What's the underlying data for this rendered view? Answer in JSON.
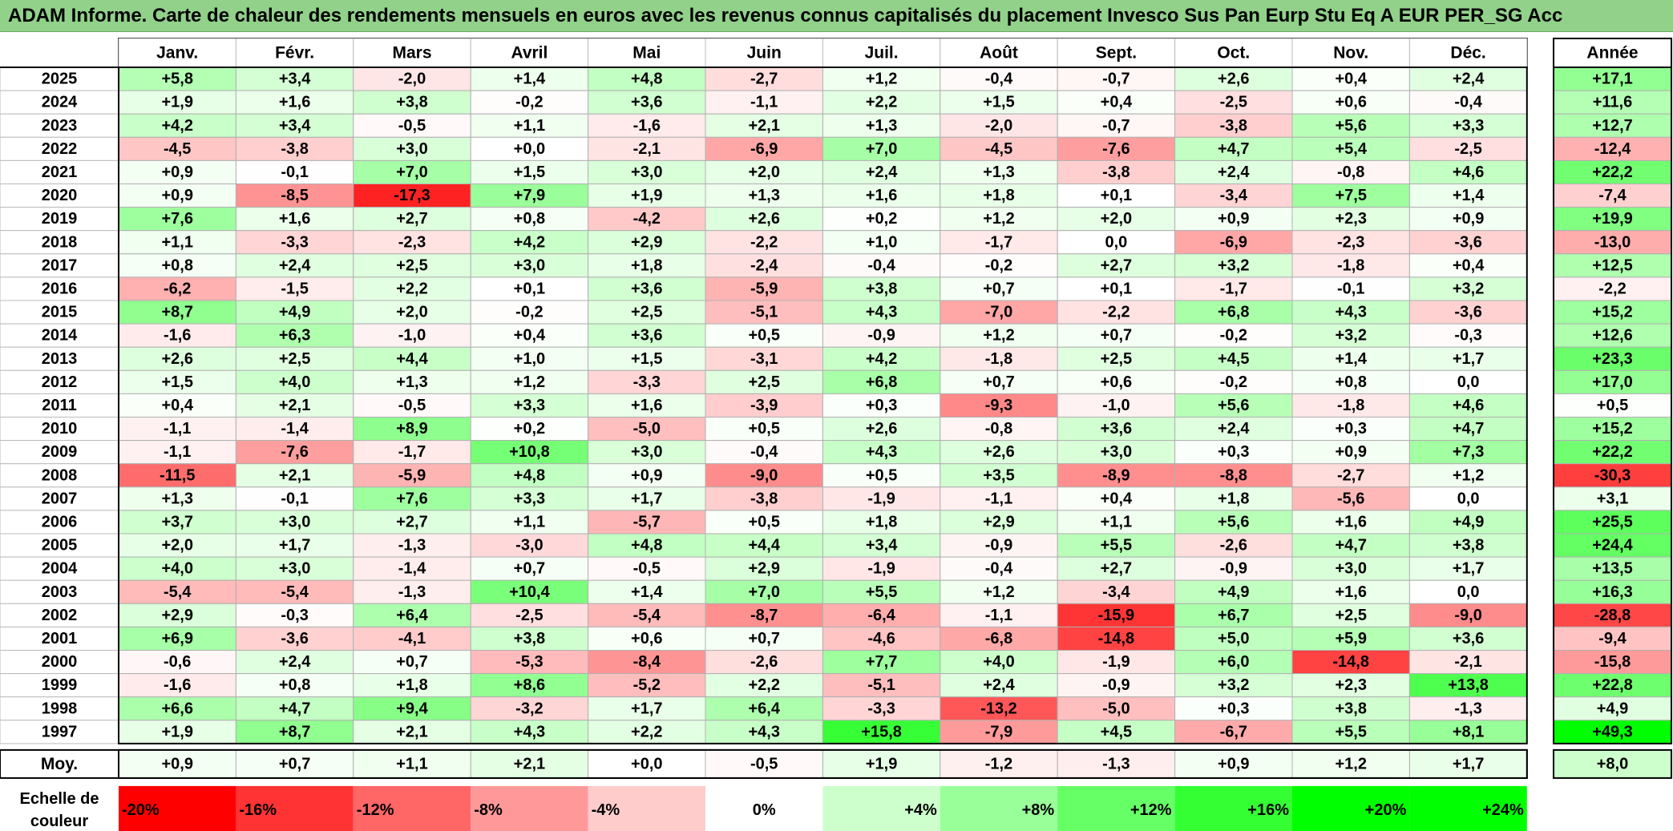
{
  "title": "ADAM Informe. Carte de chaleur des rendements mensuels en euros avec les revenus connus capitalisés du placement Invesco Sus Pan Eurp Stu Eq A EUR PER_SG Acc",
  "chart_data": {
    "type": "heatmap",
    "columns": [
      "Janv.",
      "Févr.",
      "Mars",
      "Avril",
      "Mai",
      "Juin",
      "Juil.",
      "Août",
      "Sept.",
      "Oct.",
      "Nov.",
      "Déc."
    ],
    "year_column_label": "Année",
    "rows": [
      {
        "year": "2025",
        "values": [
          "+5,8",
          "+3,4",
          "-2,0",
          "+1,4",
          "+4,8",
          "-2,7",
          "+1,2",
          "-0,4",
          "-0,7",
          "+2,6",
          "+0,4",
          "+2,4"
        ],
        "annual": "+17,1"
      },
      {
        "year": "2024",
        "values": [
          "+1,9",
          "+1,6",
          "+3,8",
          "-0,2",
          "+3,6",
          "-1,1",
          "+2,2",
          "+1,5",
          "+0,4",
          "-2,5",
          "+0,6",
          "-0,4"
        ],
        "annual": "+11,6"
      },
      {
        "year": "2023",
        "values": [
          "+4,2",
          "+3,4",
          "-0,5",
          "+1,1",
          "-1,6",
          "+2,1",
          "+1,3",
          "-2,0",
          "-0,7",
          "-3,8",
          "+5,6",
          "+3,3"
        ],
        "annual": "+12,7"
      },
      {
        "year": "2022",
        "values": [
          "-4,5",
          "-3,8",
          "+3,0",
          "+0,0",
          "-2,1",
          "-6,9",
          "+7,0",
          "-4,5",
          "-7,6",
          "+4,7",
          "+5,4",
          "-2,5"
        ],
        "annual": "-12,4"
      },
      {
        "year": "2021",
        "values": [
          "+0,9",
          "-0,1",
          "+7,0",
          "+1,5",
          "+3,0",
          "+2,0",
          "+2,4",
          "+1,3",
          "-3,8",
          "+2,4",
          "-0,8",
          "+4,6"
        ],
        "annual": "+22,2"
      },
      {
        "year": "2020",
        "values": [
          "+0,9",
          "-8,5",
          "-17,3",
          "+7,9",
          "+1,9",
          "+1,3",
          "+1,6",
          "+1,8",
          "+0,1",
          "-3,4",
          "+7,5",
          "+1,4"
        ],
        "annual": "-7,4"
      },
      {
        "year": "2019",
        "values": [
          "+7,6",
          "+1,6",
          "+2,7",
          "+0,8",
          "-4,2",
          "+2,6",
          "+0,2",
          "+1,2",
          "+2,0",
          "+0,9",
          "+2,3",
          "+0,9"
        ],
        "annual": "+19,9"
      },
      {
        "year": "2018",
        "values": [
          "+1,1",
          "-3,3",
          "-2,3",
          "+4,2",
          "+2,9",
          "-2,2",
          "+1,0",
          "-1,7",
          "0,0",
          "-6,9",
          "-2,3",
          "-3,6"
        ],
        "annual": "-13,0"
      },
      {
        "year": "2017",
        "values": [
          "+0,8",
          "+2,4",
          "+2,5",
          "+3,0",
          "+1,8",
          "-2,4",
          "-0,4",
          "-0,2",
          "+2,7",
          "+3,2",
          "-1,8",
          "+0,4"
        ],
        "annual": "+12,5"
      },
      {
        "year": "2016",
        "values": [
          "-6,2",
          "-1,5",
          "+2,2",
          "+0,1",
          "+3,6",
          "-5,9",
          "+3,8",
          "+0,7",
          "+0,1",
          "-1,7",
          "-0,1",
          "+3,2"
        ],
        "annual": "-2,2"
      },
      {
        "year": "2015",
        "values": [
          "+8,7",
          "+4,9",
          "+2,0",
          "-0,2",
          "+2,5",
          "-5,1",
          "+4,3",
          "-7,0",
          "-2,2",
          "+6,8",
          "+4,3",
          "-3,6"
        ],
        "annual": "+15,2"
      },
      {
        "year": "2014",
        "values": [
          "-1,6",
          "+6,3",
          "-1,0",
          "+0,4",
          "+3,6",
          "+0,5",
          "-0,9",
          "+1,2",
          "+0,7",
          "-0,2",
          "+3,2",
          "-0,3"
        ],
        "annual": "+12,6"
      },
      {
        "year": "2013",
        "values": [
          "+2,6",
          "+2,5",
          "+4,4",
          "+1,0",
          "+1,5",
          "-3,1",
          "+4,2",
          "-1,8",
          "+2,5",
          "+4,5",
          "+1,4",
          "+1,7"
        ],
        "annual": "+23,3"
      },
      {
        "year": "2012",
        "values": [
          "+1,5",
          "+4,0",
          "+1,3",
          "+1,2",
          "-3,3",
          "+2,5",
          "+6,8",
          "+0,7",
          "+0,6",
          "-0,2",
          "+0,8",
          "0,0"
        ],
        "annual": "+17,0"
      },
      {
        "year": "2011",
        "values": [
          "+0,4",
          "+2,1",
          "-0,5",
          "+3,3",
          "+1,6",
          "-3,9",
          "+0,3",
          "-9,3",
          "-1,0",
          "+5,6",
          "-1,8",
          "+4,6"
        ],
        "annual": "+0,5"
      },
      {
        "year": "2010",
        "values": [
          "-1,1",
          "-1,4",
          "+8,9",
          "+0,2",
          "-5,0",
          "+0,5",
          "+2,6",
          "-0,8",
          "+3,6",
          "+2,4",
          "+0,3",
          "+4,7"
        ],
        "annual": "+15,2"
      },
      {
        "year": "2009",
        "values": [
          "-1,1",
          "-7,6",
          "-1,7",
          "+10,8",
          "+3,0",
          "-0,4",
          "+4,3",
          "+2,6",
          "+3,0",
          "+0,3",
          "+0,9",
          "+7,3"
        ],
        "annual": "+22,2"
      },
      {
        "year": "2008",
        "values": [
          "-11,5",
          "+2,1",
          "-5,9",
          "+4,8",
          "+0,9",
          "-9,0",
          "+0,5",
          "+3,5",
          "-8,9",
          "-8,8",
          "-2,7",
          "+1,2"
        ],
        "annual": "-30,3"
      },
      {
        "year": "2007",
        "values": [
          "+1,3",
          "-0,1",
          "+7,6",
          "+3,3",
          "+1,7",
          "-3,8",
          "-1,9",
          "-1,1",
          "+0,4",
          "+1,8",
          "-5,6",
          "0,0"
        ],
        "annual": "+3,1"
      },
      {
        "year": "2006",
        "values": [
          "+3,7",
          "+3,0",
          "+2,7",
          "+1,1",
          "-5,7",
          "+0,5",
          "+1,8",
          "+2,9",
          "+1,1",
          "+5,6",
          "+1,6",
          "+4,9"
        ],
        "annual": "+25,5"
      },
      {
        "year": "2005",
        "values": [
          "+2,0",
          "+1,7",
          "-1,3",
          "-3,0",
          "+4,8",
          "+4,4",
          "+3,4",
          "-0,9",
          "+5,5",
          "-2,6",
          "+4,7",
          "+3,8"
        ],
        "annual": "+24,4"
      },
      {
        "year": "2004",
        "values": [
          "+4,0",
          "+3,0",
          "-1,4",
          "+0,7",
          "-0,5",
          "+2,9",
          "-1,9",
          "-0,4",
          "+2,7",
          "-0,9",
          "+3,0",
          "+1,7"
        ],
        "annual": "+13,5"
      },
      {
        "year": "2003",
        "values": [
          "-5,4",
          "-5,4",
          "-1,3",
          "+10,4",
          "+1,4",
          "+7,0",
          "+5,5",
          "+1,2",
          "-3,4",
          "+4,9",
          "+1,6",
          "0,0"
        ],
        "annual": "+16,3"
      },
      {
        "year": "2002",
        "values": [
          "+2,9",
          "-0,3",
          "+6,4",
          "-2,5",
          "-5,4",
          "-8,7",
          "-6,4",
          "-1,1",
          "-15,9",
          "+6,7",
          "+2,5",
          "-9,0"
        ],
        "annual": "-28,8"
      },
      {
        "year": "2001",
        "values": [
          "+6,9",
          "-3,6",
          "-4,1",
          "+3,8",
          "+0,6",
          "+0,7",
          "-4,6",
          "-6,8",
          "-14,8",
          "+5,0",
          "+5,9",
          "+3,6"
        ],
        "annual": "-9,4"
      },
      {
        "year": "2000",
        "values": [
          "-0,6",
          "+2,4",
          "+0,7",
          "-5,3",
          "-8,4",
          "-2,6",
          "+7,7",
          "+4,0",
          "-1,9",
          "+6,0",
          "-14,8",
          "-2,1"
        ],
        "annual": "-15,8"
      },
      {
        "year": "1999",
        "values": [
          "-1,6",
          "+0,8",
          "+1,8",
          "+8,6",
          "-5,2",
          "+2,2",
          "-5,1",
          "+2,4",
          "-0,9",
          "+3,2",
          "+2,3",
          "+13,8"
        ],
        "annual": "+22,8"
      },
      {
        "year": "1998",
        "values": [
          "+6,6",
          "+4,7",
          "+9,4",
          "-3,2",
          "+1,7",
          "+6,4",
          "-3,3",
          "-13,2",
          "-5,0",
          "+0,3",
          "+3,8",
          "-1,3"
        ],
        "annual": "+4,9"
      },
      {
        "year": "1997",
        "values": [
          "+1,9",
          "+8,7",
          "+2,1",
          "+4,3",
          "+2,2",
          "+4,3",
          "+15,8",
          "-7,9",
          "+4,5",
          "-6,7",
          "+5,5",
          "+8,1"
        ],
        "annual": "+49,3"
      }
    ],
    "average": {
      "label": "Moy.",
      "values": [
        "+0,9",
        "+0,7",
        "+1,1",
        "+2,1",
        "+0,0",
        "-0,5",
        "+1,9",
        "-1,2",
        "-1,3",
        "+0,9",
        "+1,2",
        "+1,7"
      ],
      "annual": "+8,0"
    },
    "scale": {
      "label_line1": "Echelle de",
      "label_line2": "couleur",
      "steps": [
        {
          "label": "-20%",
          "value": -20,
          "color": "#ff0000"
        },
        {
          "label": "-16%",
          "value": -16,
          "color": "#ff3333"
        },
        {
          "label": "-12%",
          "value": -12,
          "color": "#ff6666"
        },
        {
          "label": "-8%",
          "value": -8,
          "color": "#ff9999"
        },
        {
          "label": "-4%",
          "value": -4,
          "color": "#ffcccc"
        },
        {
          "label": "0%",
          "value": 0,
          "color": "#ffffff"
        },
        {
          "label": "+4%",
          "value": 4,
          "color": "#ccffcc"
        },
        {
          "label": "+8%",
          "value": 8,
          "color": "#99ff99"
        },
        {
          "label": "+12%",
          "value": 12,
          "color": "#66ff66"
        },
        {
          "label": "+16%",
          "value": 16,
          "color": "#33ff33"
        },
        {
          "label": "+20%",
          "value": 20,
          "color": "#00ff00"
        },
        {
          "label": "+24%",
          "value": 24,
          "color": "#00ff00"
        }
      ]
    }
  }
}
